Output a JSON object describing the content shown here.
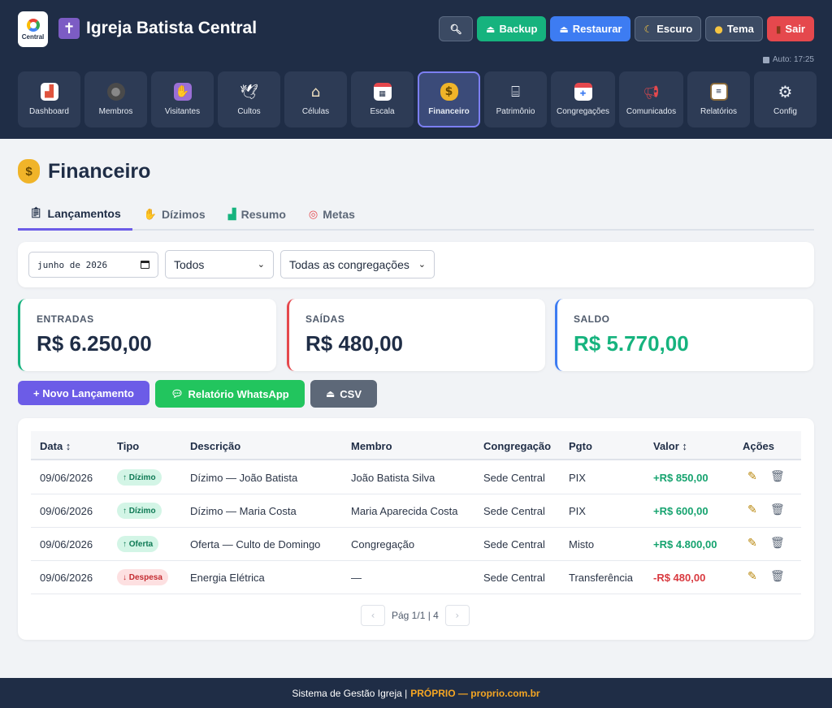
{
  "header": {
    "logo_text": "Central",
    "app_title": "Igreja Batista Central",
    "autosave": "Auto: 17:25",
    "buttons": [
      {
        "id": "search",
        "label": "",
        "icon": "search-icon"
      },
      {
        "id": "backup",
        "label": "Backup",
        "icon": "upload-icon"
      },
      {
        "id": "restore",
        "label": "Restaurar",
        "icon": "download-icon"
      },
      {
        "id": "dark",
        "label": "Escuro",
        "icon": "moon-icon"
      },
      {
        "id": "theme",
        "label": "Tema",
        "icon": "palette-icon"
      },
      {
        "id": "logout",
        "label": "Sair",
        "icon": "door-icon"
      }
    ]
  },
  "nav": [
    {
      "label": "Dashboard",
      "icon": "chart-icon"
    },
    {
      "label": "Membros",
      "icon": "people-icon"
    },
    {
      "label": "Visitantes",
      "icon": "person-raising-hand-icon"
    },
    {
      "label": "Cultos",
      "icon": "dove-icon"
    },
    {
      "label": "Células",
      "icon": "house-icon"
    },
    {
      "label": "Escala",
      "icon": "calendar-icon"
    },
    {
      "label": "Financeiro",
      "icon": "money-bag-icon"
    },
    {
      "label": "Patrimônio",
      "icon": "bank-icon"
    },
    {
      "label": "Congregações",
      "icon": "church-icon"
    },
    {
      "label": "Comunicados",
      "icon": "megaphone-icon"
    },
    {
      "label": "Relatórios",
      "icon": "clipboard-icon"
    },
    {
      "label": "Config",
      "icon": "gear-icon"
    }
  ],
  "page": {
    "title": "Financeiro",
    "tabs": [
      "Lançamentos",
      "Dízimos",
      "Resumo",
      "Metas"
    ],
    "active_tab": "Lançamentos"
  },
  "filters": {
    "month": "junho de 2026",
    "type": "Todos",
    "congregation": "Todas as congregações"
  },
  "summary": {
    "income_label": "ENTRADAS",
    "income_value": "R$ 6.250,00",
    "expense_label": "SAÍDAS",
    "expense_value": "R$ 480,00",
    "balance_label": "SALDO",
    "balance_value": "R$ 5.770,00"
  },
  "actions": {
    "new": "+ Novo Lançamento",
    "whatsapp": "Relatório WhatsApp",
    "csv": "CSV"
  },
  "table": {
    "columns": [
      "Data ↕",
      "Tipo",
      "Descrição",
      "Membro",
      "Congregação",
      "Pgto",
      "Valor ↕",
      "Ações"
    ],
    "rows": [
      {
        "date": "09/06/2026",
        "type": "↑ Dízimo",
        "kind": "in",
        "desc": "Dízimo — João Batista",
        "member": "João Batista Silva",
        "cong": "Sede Central",
        "pay": "PIX",
        "value": "+R$ 850,00"
      },
      {
        "date": "09/06/2026",
        "type": "↑ Dízimo",
        "kind": "in",
        "desc": "Dízimo — Maria Costa",
        "member": "Maria Aparecida Costa",
        "cong": "Sede Central",
        "pay": "PIX",
        "value": "+R$ 600,00"
      },
      {
        "date": "09/06/2026",
        "type": "↑ Oferta",
        "kind": "in",
        "desc": "Oferta — Culto de Domingo",
        "member": "Congregação",
        "cong": "Sede Central",
        "pay": "Misto",
        "value": "+R$ 4.800,00"
      },
      {
        "date": "09/06/2026",
        "type": "↓ Despesa",
        "kind": "out",
        "desc": "Energia Elétrica",
        "member": "—",
        "cong": "Sede Central",
        "pay": "Transferência",
        "value": "-R$ 480,00"
      }
    ],
    "pagination": "Pág 1/1 | 4"
  },
  "footer": {
    "text": "Sistema de Gestão Igreja |",
    "brand": "PRÓPRIO — proprio.com.br"
  },
  "colors": {
    "header_bg": "#1f2d46",
    "accent": "#6c5ce7",
    "positive": "#16b37e",
    "negative": "#e5484d"
  }
}
